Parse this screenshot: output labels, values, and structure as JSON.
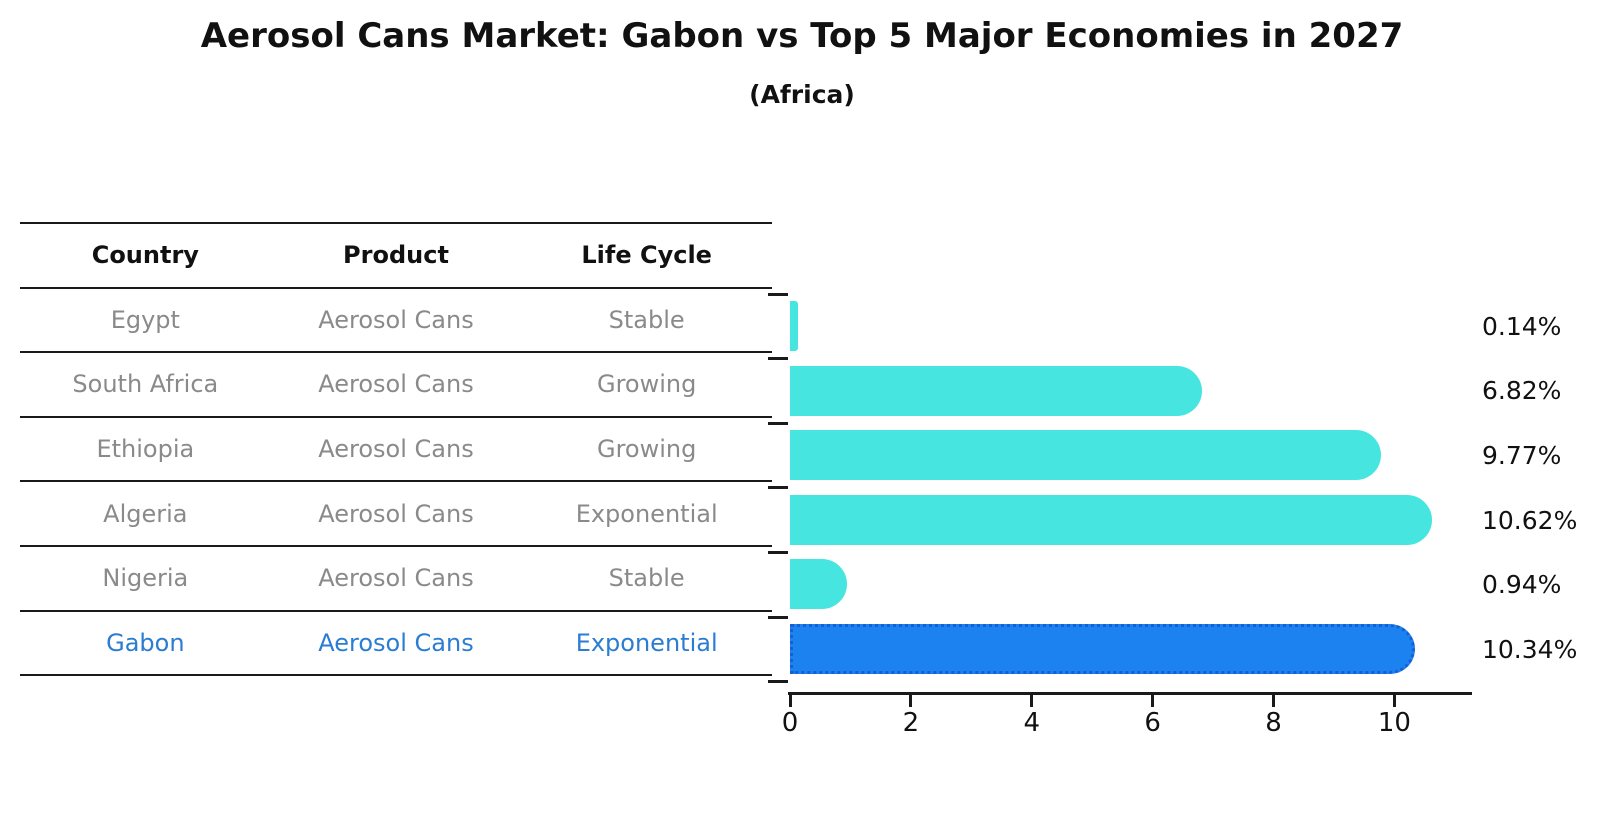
{
  "chart_data": {
    "type": "bar",
    "orientation": "horizontal",
    "title": "Aerosol Cans Market: Gabon vs Top 5 Major Economies in 2027",
    "subtitle": "(Africa)",
    "categories": [
      "Egypt",
      "South Africa",
      "Ethiopia",
      "Algeria",
      "Nigeria",
      "Gabon"
    ],
    "values": [
      0.14,
      6.82,
      9.77,
      10.62,
      0.94,
      10.34
    ],
    "value_labels": [
      "0.14%",
      "6.82%",
      "9.77%",
      "10.62%",
      "0.94%",
      "10.34%"
    ],
    "xticks": [
      0,
      2,
      4,
      6,
      8,
      10
    ],
    "xlim": [
      0,
      11.25
    ],
    "grid": false,
    "legend": false,
    "bar_color": "#46E5E0",
    "highlight_index": 5,
    "highlight_color": "#1B82EF",
    "highlight_border_color": "#1560D6",
    "axis_color": "#1a1a1a"
  },
  "table": {
    "headers": [
      "Country",
      "Product",
      "Life Cycle"
    ],
    "rows": [
      {
        "country": "Egypt",
        "product": "Aerosol Cans",
        "life_cycle": "Stable",
        "highlight": false
      },
      {
        "country": "South Africa",
        "product": "Aerosol Cans",
        "life_cycle": "Growing",
        "highlight": false
      },
      {
        "country": "Ethiopia",
        "product": "Aerosol Cans",
        "life_cycle": "Growing",
        "highlight": false
      },
      {
        "country": "Algeria",
        "product": "Aerosol Cans",
        "life_cycle": "Exponential",
        "highlight": false
      },
      {
        "country": "Nigeria",
        "product": "Aerosol Cans",
        "life_cycle": "Stable",
        "highlight": false
      },
      {
        "country": "Gabon",
        "product": "Aerosol Cans",
        "life_cycle": "Exponential",
        "highlight": true
      }
    ],
    "highlight_text_color": "#2a7dd2"
  }
}
